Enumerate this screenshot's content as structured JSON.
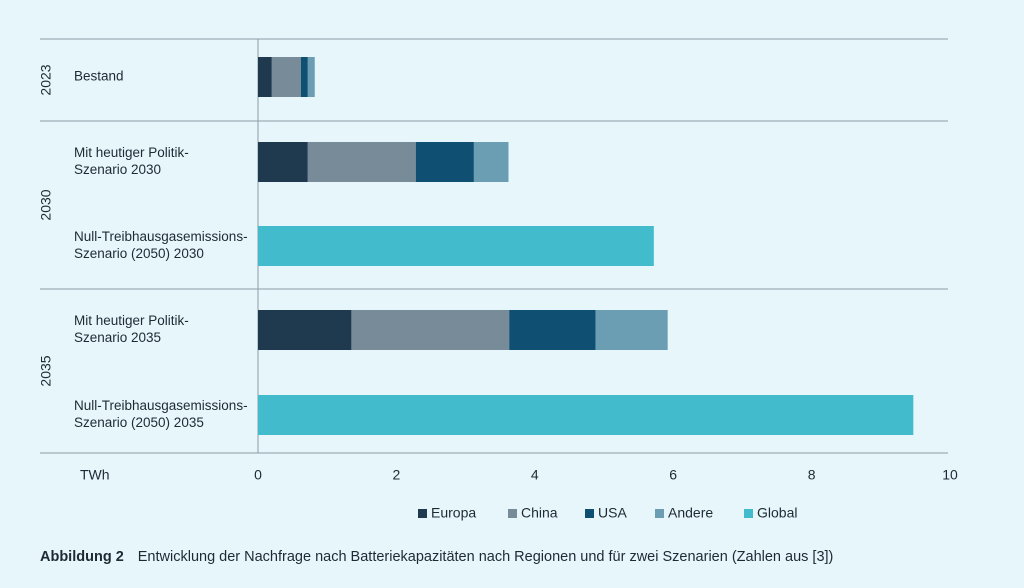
{
  "chart_data": {
    "type": "bar",
    "orientation": "horizontal",
    "stacked": true,
    "xlabel": "TWh",
    "xlim": [
      0,
      10
    ],
    "xticks": [
      "0",
      "2",
      "4",
      "6",
      "8",
      "10"
    ],
    "groups": [
      {
        "label": "2023",
        "rows": [
          0
        ]
      },
      {
        "label": "2030",
        "rows": [
          1,
          2
        ]
      },
      {
        "label": "2035",
        "rows": [
          3,
          4
        ]
      }
    ],
    "categories": [
      [
        "Bestand"
      ],
      [
        "Mit heutiger Politik-",
        "Szenario 2030"
      ],
      [
        "Null-Treibhausgasemissions-",
        "Szenario (2050) 2030"
      ],
      [
        "Mit heutiger Politik-",
        "Szenario 2035"
      ],
      [
        "Null-Treibhausgasemissions-",
        "Szenario (2050) 2035"
      ]
    ],
    "series": [
      {
        "name": "Europa",
        "color": "#1f3a4f",
        "values": [
          0.2,
          0.72,
          0,
          1.35,
          0
        ]
      },
      {
        "name": "China",
        "color": "#778b98",
        "values": [
          0.42,
          1.56,
          0,
          2.28,
          0
        ]
      },
      {
        "name": "USA",
        "color": "#0e4f72",
        "values": [
          0.1,
          0.84,
          0,
          1.25,
          0
        ]
      },
      {
        "name": "Andere",
        "color": "#6b9db3",
        "values": [
          0.1,
          0.5,
          0,
          1.04,
          0
        ]
      },
      {
        "name": "Global",
        "color": "#42bccd",
        "values": [
          0,
          0,
          5.72,
          0,
          9.47
        ]
      }
    ],
    "grid": false,
    "legend_position": "bottom"
  },
  "caption": {
    "label": "Abbildung 2",
    "text": "Entwicklung der Nachfrage nach Batteriekapazitäten nach Regionen und für zwei Szenarien (Zahlen aus [3])"
  }
}
